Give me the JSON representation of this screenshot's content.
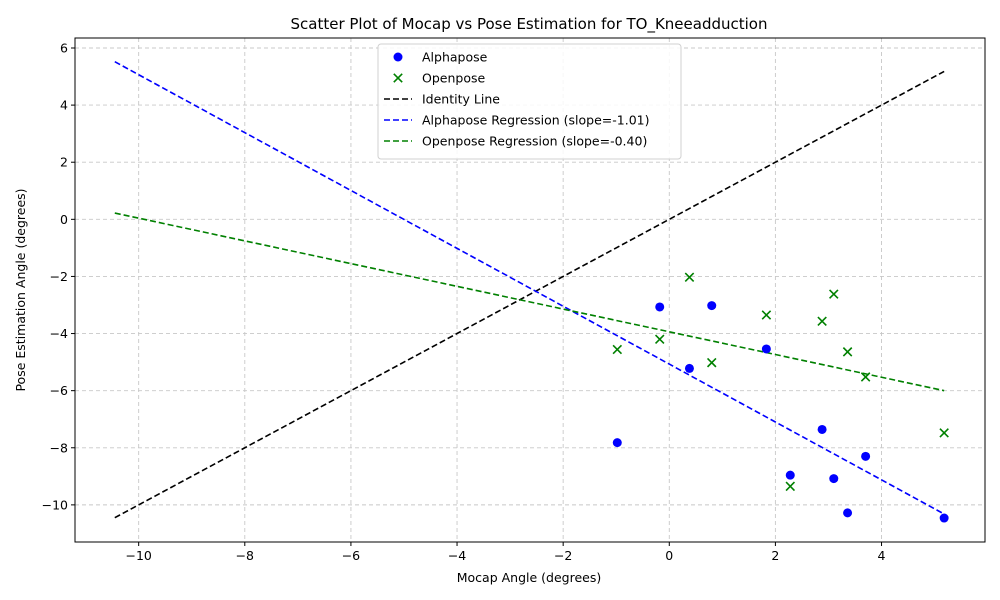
{
  "chart_data": {
    "type": "scatter",
    "title": "Scatter Plot of Mocap vs Pose Estimation for TO_Kneeadduction",
    "xlabel": "Mocap Angle (degrees)",
    "ylabel": "Pose Estimation Angle (degrees)",
    "xlim": [
      -11.2,
      5.95
    ],
    "ylim": [
      -11.3,
      6.35
    ],
    "xticks": [
      -10,
      -8,
      -6,
      -4,
      -2,
      0,
      2,
      4
    ],
    "yticks": [
      -10,
      -8,
      -6,
      -4,
      -2,
      0,
      2,
      4,
      6
    ],
    "grid": true,
    "legend_position": "top-center",
    "series": [
      {
        "name": "Alphapose",
        "kind": "points",
        "marker": "circle",
        "color": "#0000ff",
        "points": [
          [
            -0.98,
            -7.82
          ],
          [
            -0.18,
            -3.07
          ],
          [
            0.38,
            -5.22
          ],
          [
            0.8,
            -3.02
          ],
          [
            1.83,
            -4.54
          ],
          [
            2.28,
            -8.96
          ],
          [
            2.88,
            -7.36
          ],
          [
            3.1,
            -9.08
          ],
          [
            3.36,
            -10.28
          ],
          [
            3.7,
            -8.3
          ],
          [
            5.18,
            -10.46
          ]
        ]
      },
      {
        "name": "Openpose",
        "kind": "points",
        "marker": "x",
        "color": "#008000",
        "points": [
          [
            -0.98,
            -4.56
          ],
          [
            -0.18,
            -4.2
          ],
          [
            0.38,
            -2.03
          ],
          [
            0.8,
            -5.02
          ],
          [
            1.83,
            -3.35
          ],
          [
            2.28,
            -9.35
          ],
          [
            2.88,
            -3.57
          ],
          [
            3.1,
            -2.62
          ],
          [
            3.36,
            -4.64
          ],
          [
            3.7,
            -5.52
          ],
          [
            5.18,
            -7.48
          ]
        ]
      },
      {
        "name": "Identity Line",
        "kind": "line",
        "color": "#000000",
        "points": [
          [
            -10.45,
            -10.45
          ],
          [
            5.18,
            5.18
          ]
        ]
      },
      {
        "name": "Alphapose Regression (slope=-1.01)",
        "kind": "line",
        "color": "#0000ff",
        "points": [
          [
            -10.45,
            5.52
          ],
          [
            5.18,
            -10.32
          ]
        ]
      },
      {
        "name": "Openpose Regression (slope=-0.40)",
        "kind": "line",
        "color": "#008000",
        "points": [
          [
            -10.45,
            0.22
          ],
          [
            5.18,
            -6.0
          ]
        ]
      }
    ]
  }
}
